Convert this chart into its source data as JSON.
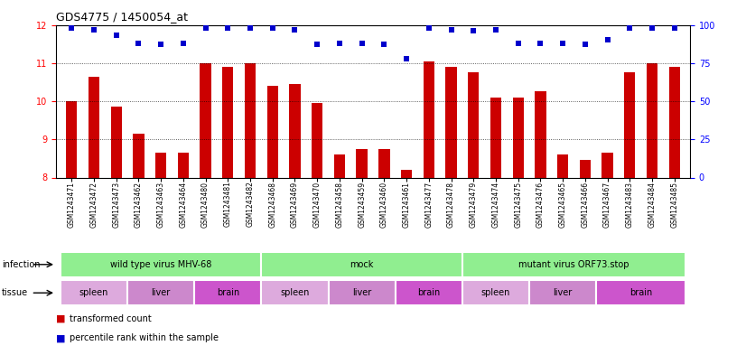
{
  "title": "GDS4775 / 1450054_at",
  "samples": [
    "GSM1243471",
    "GSM1243472",
    "GSM1243473",
    "GSM1243462",
    "GSM1243463",
    "GSM1243464",
    "GSM1243480",
    "GSM1243481",
    "GSM1243482",
    "GSM1243468",
    "GSM1243469",
    "GSM1243470",
    "GSM1243458",
    "GSM1243459",
    "GSM1243460",
    "GSM1243461",
    "GSM1243477",
    "GSM1243478",
    "GSM1243479",
    "GSM1243474",
    "GSM1243475",
    "GSM1243476",
    "GSM1243465",
    "GSM1243466",
    "GSM1243467",
    "GSM1243483",
    "GSM1243484",
    "GSM1243485"
  ],
  "bar_values": [
    10.0,
    10.65,
    9.85,
    9.15,
    8.65,
    8.65,
    11.0,
    10.9,
    11.0,
    10.4,
    10.45,
    9.95,
    8.6,
    8.75,
    8.75,
    8.2,
    11.05,
    10.9,
    10.75,
    10.1,
    10.1,
    10.25,
    8.6,
    8.45,
    8.65,
    10.75,
    11.0,
    10.9
  ],
  "percentile_values": [
    98,
    97,
    93,
    88,
    87,
    88,
    98,
    98,
    98,
    98,
    97,
    87,
    88,
    88,
    87,
    78,
    98,
    97,
    96,
    97,
    88,
    88,
    88,
    87,
    90,
    98,
    98,
    98
  ],
  "bar_color": "#cc0000",
  "percentile_color": "#0000cc",
  "ylim_left": [
    8,
    12
  ],
  "ylim_right": [
    0,
    100
  ],
  "yticks_left": [
    8,
    9,
    10,
    11,
    12
  ],
  "yticks_right": [
    0,
    25,
    50,
    75,
    100
  ],
  "infection_groups": [
    {
      "label": "wild type virus MHV-68",
      "start": 0,
      "end": 9
    },
    {
      "label": "mock",
      "start": 9,
      "end": 18
    },
    {
      "label": "mutant virus ORF73.stop",
      "start": 18,
      "end": 28
    }
  ],
  "tissue_groups": [
    {
      "label": "spleen",
      "start": 0,
      "end": 3
    },
    {
      "label": "liver",
      "start": 3,
      "end": 6
    },
    {
      "label": "brain",
      "start": 6,
      "end": 9
    },
    {
      "label": "spleen",
      "start": 9,
      "end": 12
    },
    {
      "label": "liver",
      "start": 12,
      "end": 15
    },
    {
      "label": "brain",
      "start": 15,
      "end": 18
    },
    {
      "label": "spleen",
      "start": 18,
      "end": 21
    },
    {
      "label": "liver",
      "start": 21,
      "end": 24
    },
    {
      "label": "brain",
      "start": 24,
      "end": 28
    }
  ],
  "infection_color": "#90ee90",
  "tissue_colors": {
    "spleen": "#ddaadd",
    "liver": "#cc88cc",
    "brain": "#cc55cc"
  },
  "infection_row_label": "infection",
  "tissue_row_label": "tissue",
  "legend_red": "transformed count",
  "legend_blue": "percentile rank within the sample",
  "bg_color": "#f0f0f0"
}
